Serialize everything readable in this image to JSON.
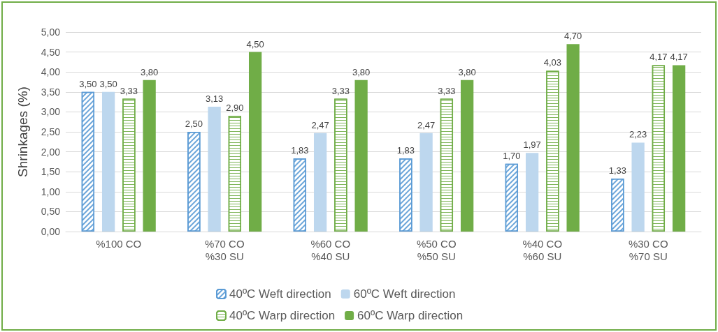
{
  "chart_data": {
    "type": "bar",
    "ylabel": "Shrinkages (%)",
    "categories": [
      "%100 CO",
      "%70 CO\n%30 SU",
      "%60 CO\n%40 SU",
      "%50 CO\n%50 SU",
      "%40 CO\n%60 SU",
      "%30 CO\n%70 SU"
    ],
    "series": [
      {
        "name": "40ºC Weft direction",
        "color": "#5b9bd5",
        "values": [
          3.5,
          2.5,
          1.83,
          1.83,
          1.7,
          1.33
        ],
        "value_labels": [
          "3,50",
          "2,50",
          "1,83",
          "1,83",
          "1,70",
          "1,33"
        ]
      },
      {
        "name": "60ºC Weft direction",
        "color": "#bdd7ee",
        "values": [
          3.5,
          3.13,
          2.47,
          2.47,
          1.97,
          2.23
        ],
        "value_labels": [
          "3,50",
          "3,13",
          "2,47",
          "2,47",
          "1,97",
          "2,23"
        ]
      },
      {
        "name": "40ºC Warp direction",
        "color": "#70ad47",
        "values": [
          3.33,
          2.9,
          3.33,
          3.33,
          4.03,
          4.17
        ],
        "value_labels": [
          "3,33",
          "2,90",
          "3,33",
          "3,33",
          "4,03",
          "4,17"
        ]
      },
      {
        "name": "60ºC Warp direction",
        "color": "#70ad47",
        "values": [
          3.8,
          4.5,
          3.8,
          3.8,
          4.7,
          4.17
        ],
        "value_labels": [
          "3,80",
          "4,50",
          "3,80",
          "3,80",
          "4,70",
          "4,17"
        ]
      }
    ],
    "ylim": [
      0,
      5
    ],
    "yticks": [
      {
        "value": 0,
        "label": "0,00"
      },
      {
        "value": 0.5,
        "label": "0,50"
      },
      {
        "value": 1,
        "label": "1,00"
      },
      {
        "value": 1.5,
        "label": "1,50"
      },
      {
        "value": 2,
        "label": "2,00"
      },
      {
        "value": 2.5,
        "label": "2,50"
      },
      {
        "value": 3,
        "label": "3,00"
      },
      {
        "value": 3.5,
        "label": "3,50"
      },
      {
        "value": 4,
        "label": "4,00"
      },
      {
        "value": 4.5,
        "label": "4,50"
      },
      {
        "value": 5,
        "label": "5,00"
      }
    ],
    "grid": "y",
    "legend": "bottom"
  }
}
